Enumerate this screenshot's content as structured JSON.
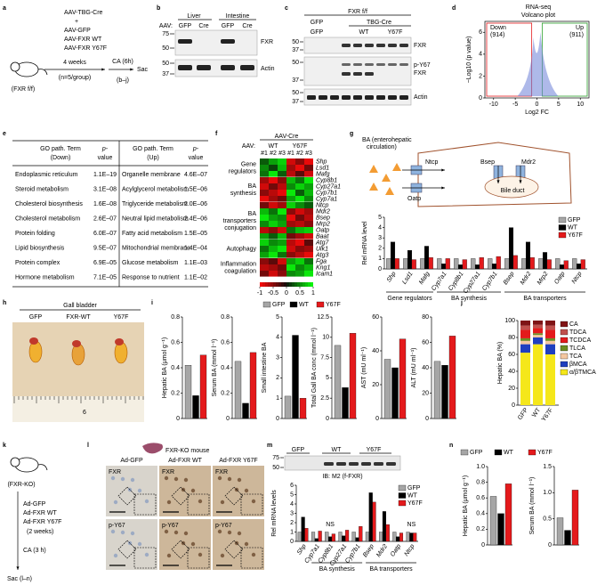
{
  "a": {
    "label": "a",
    "mouse": "(FXR f/f)",
    "steps": [
      "AAV-TBG-Cre",
      "+",
      "AAV-GFP",
      "AAV-FXR WT",
      "AAV-FXR Y67F"
    ],
    "time": "4 weeks",
    "n": "(n=5/group)",
    "treatment": "CA (6h)",
    "end": "Sac",
    "panels": "(b–j)"
  },
  "b": {
    "label": "b",
    "aav": "AAV:",
    "tissues": [
      "Liver",
      "Intestine"
    ],
    "lanes": [
      "GFP",
      "Cre",
      "GFP",
      "Cre"
    ],
    "bands": [
      "FXR",
      "Actin"
    ],
    "markers": [
      75,
      50,
      50,
      37
    ]
  },
  "c": {
    "label": "c",
    "genotype": "FXR f/f",
    "groups": [
      "GFP",
      "TBG-Cre"
    ],
    "lanes": [
      "GFP",
      "WT",
      "Y67F"
    ],
    "bands": [
      "FXR",
      "p-Y67",
      "FXR",
      "Actin"
    ],
    "markers": [
      50,
      37,
      50,
      37,
      50,
      37
    ]
  },
  "d": {
    "label": "d",
    "title": "RNA-seq",
    "subtitle": "Volcano plot",
    "down": "Down",
    "down_n": "(914)",
    "up": "Up",
    "up_n": "(911)",
    "xlabel": "Log2 FC",
    "ylabel": "−Log10 (p value)",
    "xlim": [
      -12,
      12
    ],
    "xticks": [
      -10,
      -5,
      0,
      5,
      10
    ],
    "ylim": [
      0,
      7
    ],
    "yticks": [
      0,
      2,
      4,
      6
    ]
  },
  "e": {
    "label": "e",
    "headers": {
      "down": [
        "GO path. Term",
        "(Down)"
      ],
      "up": [
        "GO path. Term",
        "(Up)"
      ],
      "pvalue": [
        "p-",
        "value"
      ]
    },
    "rows": [
      [
        "Endoplasmic reticulum",
        "1.1E–19",
        "Organelle membrane",
        "4.6E–07"
      ],
      [
        "Steroid metabolism",
        "3.1E–08",
        "Acylglycerol metabolism",
        "1.5E–06"
      ],
      [
        "Cholesterol biosynthesis",
        "1.6E–08",
        "Triglyceride metabolism",
        "2.0E–06"
      ],
      [
        "Cholesterol metabolism",
        "2.6E–07",
        "Neutral lipid metabolism",
        "2.4E–06"
      ],
      [
        "Protein folding",
        "6.0E–07",
        "Fatty acid metabolism",
        "1.5E–05"
      ],
      [
        "Lipid biosynthesis",
        "9.5E–07",
        "Mitochondrial membrane",
        "1.4E–04"
      ],
      [
        "Protein complex",
        "6.9E–05",
        "Glucose metabolism",
        "1.1E–03"
      ],
      [
        "Hormone metabolism",
        "7.1E–05",
        "Response to nutrient",
        "1.1E–02"
      ]
    ]
  },
  "f": {
    "label": "f",
    "vector": "AAV-Cre",
    "aav": "AAV:",
    "groups": [
      "WT",
      "Y67F"
    ],
    "reps": [
      "#1",
      "#2",
      "#3",
      "#1",
      "#2",
      "#3"
    ],
    "scale_ticks": [
      -1,
      -0.5,
      0,
      0.5,
      1
    ],
    "categories": [
      {
        "name": [
          "Gene",
          "regulators"
        ],
        "genes": [
          "Shp",
          "Lsd1",
          "Mafg"
        ],
        "values": [
          [
            0.3,
            0.6,
            0.8,
            -0.8,
            -0.5,
            -0.9
          ],
          [
            0.5,
            0.2,
            0.7,
            -0.6,
            -0.9,
            -0.4
          ],
          [
            0.4,
            0.9,
            0.3,
            -0.7,
            -0.3,
            -0.8
          ]
        ]
      },
      {
        "name": [
          "BA",
          "synthesis"
        ],
        "genes": [
          "Cyp8b1",
          "Cyp27a1",
          "Cyp7b1",
          "Cyp7a1"
        ],
        "values": [
          [
            -0.6,
            -0.9,
            -0.5,
            0.7,
            0.4,
            0.9
          ],
          [
            -0.8,
            -0.4,
            -0.7,
            0.5,
            0.8,
            0.6
          ],
          [
            -0.5,
            -0.7,
            -0.9,
            0.9,
            0.3,
            0.7
          ],
          [
            -0.9,
            -0.6,
            -0.4,
            0.6,
            0.9,
            0.5
          ]
        ]
      },
      {
        "name": [
          "BA",
          "transporters",
          "conjugation"
        ],
        "genes": [
          "Ntcp",
          "Mdr2",
          "Bsep",
          "Mrp2",
          "Oatp",
          "Baat"
        ],
        "values": [
          [
            -0.4,
            -0.8,
            -0.6,
            0.8,
            0.5,
            0.3
          ],
          [
            0.7,
            0.4,
            0.9,
            -0.5,
            -0.8,
            -0.6
          ],
          [
            0.9,
            0.6,
            0.5,
            -0.9,
            -0.4,
            -0.7
          ],
          [
            0.5,
            0.8,
            0.6,
            -0.6,
            -0.7,
            -0.5
          ],
          [
            -0.7,
            -0.5,
            -0.8,
            0.4,
            0.7,
            0.8
          ],
          [
            0.6,
            0.3,
            0.7,
            -0.4,
            -0.6,
            -0.8
          ]
        ]
      },
      {
        "name": [
          "Autophagy"
        ],
        "genes": [
          "Atg7",
          "Ulk1",
          "Atg3"
        ],
        "values": [
          [
            0.8,
            0.5,
            0.6,
            -0.7,
            -0.9,
            -0.3
          ],
          [
            0.4,
            0.7,
            0.9,
            -0.8,
            -0.5,
            -0.6
          ],
          [
            0.6,
            0.9,
            0.4,
            -0.5,
            -0.7,
            -0.9
          ]
        ]
      },
      {
        "name": [
          "Inflammation",
          "coagulation"
        ],
        "genes": [
          "Fga",
          "Kng1",
          "Icam1"
        ],
        "values": [
          [
            -0.5,
            -0.3,
            -0.8,
            0.6,
            0.8,
            0.4
          ],
          [
            -0.7,
            -0.6,
            -0.4,
            0.9,
            0.5,
            0.7
          ],
          [
            -0.4,
            -0.8,
            -0.5,
            0.5,
            0.6,
            0.9
          ]
        ]
      }
    ]
  },
  "g": {
    "label": "g",
    "diagram": {
      "title": [
        "BA (enterohepatic",
        "circulation)"
      ],
      "ntcp": "Ntcp",
      "oatp": "Oatp",
      "bsep": "Bsep",
      "mdr2": "Mdr2",
      "duct": "Bile duct"
    },
    "ylabel": "Rel mRNA level",
    "ylim": [
      0,
      5
    ],
    "yticks": [
      0,
      1,
      2,
      3,
      4,
      5
    ],
    "categories": [
      "Shp",
      "Lsd1",
      "Mafg",
      "Cyp7a1",
      "Cyp8b1",
      "Cyp27a1",
      "Cyp7b1",
      "Bsep",
      "Mdr2",
      "Mrp2",
      "Oatp",
      "Ntcp"
    ],
    "groups": [
      {
        "name": "Gene regulators",
        "span": [
          "Shp",
          "Mafg"
        ]
      },
      {
        "name": "BA synthesis",
        "span": [
          "Cyp7a1",
          "Cyp7b1"
        ]
      },
      {
        "name": "BA transporters",
        "span": [
          "Bsep",
          "Ntcp"
        ]
      }
    ],
    "series": [
      {
        "name": "GFP",
        "color": "#a6a6a6",
        "values": [
          1,
          1,
          1,
          1,
          1,
          1,
          1,
          1,
          1,
          1,
          1,
          1
        ]
      },
      {
        "name": "WT",
        "color": "#000000",
        "values": [
          2.6,
          1.8,
          2.2,
          0.5,
          0.4,
          0.4,
          0.5,
          4.0,
          2.6,
          1.6,
          0.4,
          0.5
        ]
      },
      {
        "name": "Y67F",
        "color": "#e41a1c",
        "values": [
          1.0,
          0.9,
          1.1,
          1.0,
          0.9,
          1.1,
          1.2,
          1.3,
          1.1,
          0.9,
          0.8,
          0.9
        ]
      }
    ]
  },
  "h": {
    "label": "h",
    "title": "Gall bladder",
    "groups": [
      "GFP",
      "FXR-WT",
      "Y67F"
    ],
    "ruler": "6"
  },
  "i": {
    "label": "i",
    "legend": [
      {
        "name": "GFP",
        "color": "#a6a6a6"
      },
      {
        "name": "WT",
        "color": "#000000"
      },
      {
        "name": "Y67F",
        "color": "#e41a1c"
      }
    ],
    "charts": [
      {
        "ylabel": "Hepatic BA (μmol g⁻¹)",
        "ylim": [
          0,
          0.8
        ],
        "yticks": [
          0,
          0.2,
          0.4,
          0.6,
          0.8
        ],
        "values": [
          0.42,
          0.18,
          0.5
        ]
      },
      {
        "ylabel": "Serum BA (mmol l⁻¹)",
        "ylim": [
          0,
          0.8
        ],
        "yticks": [
          0,
          0.2,
          0.4,
          0.6,
          0.8
        ],
        "values": [
          0.45,
          0.12,
          0.52
        ]
      },
      {
        "ylabel": "Small intestine BA",
        "ylim": [
          0,
          5
        ],
        "yticks": [
          0,
          1,
          2,
          3,
          4,
          5
        ],
        "values": [
          1.1,
          4.1,
          1.0
        ]
      },
      {
        "ylabel": "Total Gall BA conc (mmol l⁻¹)",
        "ylim": [
          0,
          12.5
        ],
        "yticks": [
          0,
          2.5,
          5,
          7.5,
          10,
          12.5
        ],
        "values": [
          9,
          3.8,
          10.5
        ]
      },
      {
        "ylabel": "AST (mU ml⁻¹)",
        "ylim": [
          0,
          60
        ],
        "yticks": [
          0,
          20,
          40,
          60
        ],
        "values": [
          35,
          30,
          47
        ]
      },
      {
        "ylabel": "ALT (mU ml⁻¹)",
        "ylim": [
          0,
          80
        ],
        "yticks": [
          0,
          20,
          40,
          60,
          80
        ],
        "values": [
          45,
          42,
          65
        ]
      }
    ]
  },
  "j": {
    "label": "j",
    "ylabel": "Hepatic BA (%)",
    "categories": [
      "GFP",
      "WT",
      "Y67F"
    ],
    "ylim": [
      0,
      100
    ],
    "yticks": [
      0,
      20,
      40,
      60,
      80,
      100
    ],
    "series": [
      {
        "name": "CA",
        "color": "#7f1416",
        "values": [
          6,
          5,
          6
        ]
      },
      {
        "name": "TDCA",
        "color": "#c0504d",
        "values": [
          5,
          4,
          5
        ]
      },
      {
        "name": "TCDCA",
        "color": "#e31a1c",
        "values": [
          10,
          6,
          10
        ]
      },
      {
        "name": "TLCA",
        "color": "#6b8e23",
        "values": [
          3,
          2,
          3
        ]
      },
      {
        "name": "TCA",
        "color": "#f4c7a0",
        "values": [
          4,
          3,
          4
        ]
      },
      {
        "name": "βMCA",
        "color": "#1f3fbf",
        "values": [
          10,
          8,
          12
        ]
      },
      {
        "name": "α/βTMCA",
        "color": "#f5e71a",
        "values": [
          62,
          72,
          60
        ]
      }
    ]
  },
  "k": {
    "label": "k",
    "mouse": "(FXR-KO)",
    "steps": [
      "Ad-GFP",
      "Ad-FXR WT",
      "Ad-FXR Y67F"
    ],
    "time": "(2 weeks)",
    "treatment": "CA (3 h)",
    "end": "Sac (l–n)"
  },
  "l": {
    "label": "l",
    "title": "FXR-KO mouse",
    "groups": [
      "Ad-GFP",
      "Ad-FXR WT",
      "Ad-FXR Y67F"
    ],
    "stains": [
      "FXR",
      "p-Y67"
    ]
  },
  "m": {
    "label": "m",
    "blot": {
      "lanes": [
        "GFP",
        "WT",
        "Y67F"
      ],
      "markers": [
        75,
        50
      ],
      "ib": "IB: M2 (f-FXR)"
    },
    "ylabel": "Rel mRNA levels",
    "ylim": [
      0,
      6
    ],
    "yticks": [
      0,
      1,
      2,
      3,
      4,
      5,
      6
    ],
    "categories": [
      "Shp",
      "Cyp7a1",
      "Cyp8b1",
      "Cyp27a1",
      "Cyp7b1",
      "Bsep",
      "Mdr2",
      "Oatp",
      "Ntcp"
    ],
    "groups": [
      {
        "name": "BA synthesis",
        "span": [
          "Cyp7a1",
          "Cyp7b1"
        ]
      },
      {
        "name": "BA transporters",
        "span": [
          "Bsep",
          "Ntcp"
        ]
      }
    ],
    "annotations": [
      {
        "text": "NS",
        "category": "Cyp8b1"
      },
      {
        "text": "NS",
        "category": "Ntcp"
      }
    ],
    "series": [
      {
        "name": "GFP",
        "color": "#a6a6a6",
        "values": [
          1,
          1,
          1,
          1,
          1,
          1,
          1,
          1,
          1
        ]
      },
      {
        "name": "WT",
        "color": "#000000",
        "values": [
          2.6,
          0.3,
          0.5,
          0.6,
          0.4,
          5.2,
          3.2,
          0.5,
          0.9
        ]
      },
      {
        "name": "Y67F",
        "color": "#e41a1c",
        "values": [
          1.4,
          1.1,
          0.8,
          1.2,
          1.6,
          4.2,
          1.8,
          0.9,
          0.9
        ]
      }
    ]
  },
  "n": {
    "label": "n",
    "legend": [
      {
        "name": "GFP",
        "color": "#a6a6a6"
      },
      {
        "name": "WT",
        "color": "#000000"
      },
      {
        "name": "Y67F",
        "color": "#e41a1c"
      }
    ],
    "charts": [
      {
        "ylabel": "Hepatic BA (μmol g⁻¹)",
        "ylim": [
          0,
          1
        ],
        "yticks": [
          0,
          0.2,
          0.4,
          0.6,
          0.8,
          {
            "value": 1,
            "label": "1.0"
          }
        ],
        "values": [
          0.62,
          0.4,
          0.78
        ]
      },
      {
        "ylabel": "Serum BA (mmol l⁻¹)",
        "ylim": [
          0,
          1.5
        ],
        "yticks": [
          0,
          0.5,
          {
            "value": 1,
            "label": "1.0"
          },
          1.5
        ],
        "values": [
          0.52,
          0.28,
          1.05
        ]
      }
    ]
  }
}
